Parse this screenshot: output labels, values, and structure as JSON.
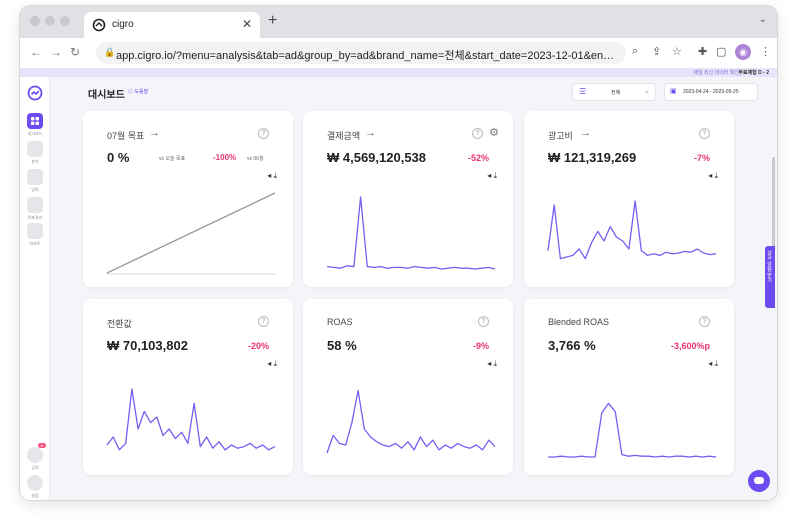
{
  "browser": {
    "tab_title": "cigro",
    "tab_close": "✕",
    "new_tab": "+",
    "url": "app.cigro.io/?menu=analysis&tab=ad&group_by=ad&brand_name=전체&start_date=2023-12-01&end_date=2023-12..."
  },
  "promo": {
    "text": "매일 최신 데이터 확인",
    "strong": "무료체험 D - 2"
  },
  "sidebar": {
    "items": [
      {
        "label": "대시보드",
        "active": true
      },
      {
        "label": "분석"
      },
      {
        "label": "입력"
      },
      {
        "label": "목표관리"
      },
      {
        "label": "리포트"
      }
    ],
    "bottom": [
      {
        "label": "공지"
      },
      {
        "label": "설정"
      }
    ],
    "badge": "N"
  },
  "header": {
    "title": "대시보드",
    "help": "도움말",
    "view_select": "전체",
    "date_range": "2023-04-24 - 2023-05-25"
  },
  "cards": [
    {
      "title": "07월 목표",
      "value": "0 %",
      "vs_label": "vs 오늘 목표",
      "change": "-100%",
      "month_label": "vs 06월"
    },
    {
      "title": "결제금액",
      "value": "₩ 4,569,120,538",
      "change": "-52%"
    },
    {
      "title": "광고비",
      "value": "₩ 121,319,269",
      "change": "-7%"
    },
    {
      "title": "전환값",
      "value": "₩ 70,103,802",
      "change": "-20%"
    },
    {
      "title": "ROAS",
      "value": "58 %",
      "change": "-9%"
    },
    {
      "title": "Blended ROAS",
      "value": "3,766 %",
      "change": "-3,600%p"
    }
  ],
  "right_tab": "성과 알림 받기",
  "colors": {
    "accent": "#6c4cf0",
    "negative": "#e8386e",
    "line": "#7b5cf2",
    "goal_line": "#9a9a9a"
  },
  "chart_data": [
    {
      "type": "line",
      "series": [
        {
          "values": [
            0,
            10,
            20,
            30,
            40,
            50,
            60,
            70,
            80,
            90,
            100
          ]
        }
      ],
      "ylim": [
        0,
        100
      ]
    },
    {
      "type": "line",
      "series": [
        {
          "values": [
            8,
            7,
            6,
            9,
            8,
            95,
            8,
            7,
            8,
            6,
            7,
            7,
            6,
            8,
            7,
            6,
            7,
            5,
            6,
            7,
            6,
            6,
            5,
            6,
            7,
            5
          ]
        }
      ],
      "ylim": [
        0,
        100
      ]
    },
    {
      "type": "line",
      "series": [
        {
          "values": [
            28,
            85,
            18,
            20,
            22,
            30,
            18,
            38,
            52,
            40,
            58,
            45,
            40,
            30,
            90,
            28,
            22,
            24,
            22,
            26,
            24,
            25,
            27,
            26,
            30,
            25,
            23,
            24
          ]
        }
      ],
      "ylim": [
        0,
        100
      ]
    },
    {
      "type": "line",
      "series": [
        {
          "values": [
            20,
            30,
            14,
            22,
            90,
            40,
            62,
            48,
            55,
            32,
            40,
            28,
            36,
            22,
            72,
            18,
            30,
            16,
            24,
            14,
            20,
            16,
            18,
            22,
            16,
            20,
            14,
            18
          ]
        }
      ],
      "ylim": [
        0,
        100
      ]
    },
    {
      "type": "line",
      "series": [
        {
          "values": [
            10,
            32,
            22,
            20,
            48,
            88,
            40,
            30,
            24,
            20,
            18,
            22,
            16,
            24,
            14,
            30,
            18,
            26,
            14,
            20,
            16,
            22,
            18,
            16,
            20,
            14,
            26,
            18
          ]
        }
      ],
      "ylim": [
        0,
        100
      ]
    },
    {
      "type": "line",
      "series": [
        {
          "values": [
            5,
            5,
            6,
            5,
            5,
            6,
            5,
            5,
            60,
            72,
            62,
            8,
            6,
            7,
            6,
            6,
            5,
            6,
            5,
            6,
            6,
            5,
            6,
            5,
            6,
            5
          ]
        }
      ],
      "ylim": [
        0,
        100
      ]
    }
  ]
}
